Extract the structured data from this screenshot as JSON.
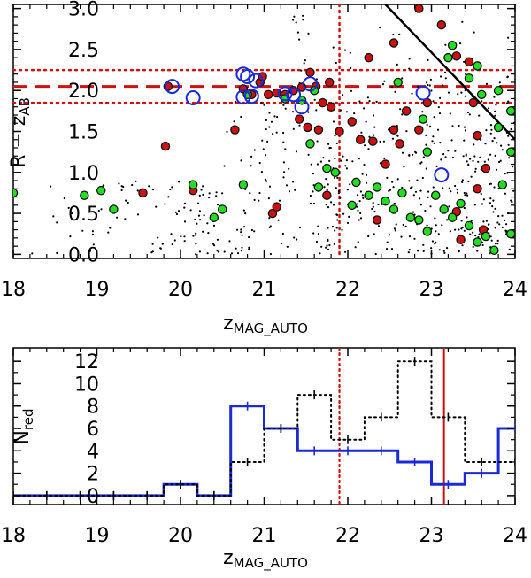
{
  "chart_data": [
    {
      "type": "scatter",
      "panel": "top",
      "xlabel_main": "z",
      "xlabel_sub": "MAG_AUTO",
      "ylabel_main": "R − z",
      "ylabel_sub": "AB",
      "xlim": [
        18,
        24
      ],
      "ylim": [
        -0.05,
        3.05
      ],
      "xticks": [
        "18",
        "19",
        "20",
        "21",
        "22",
        "23",
        "24"
      ],
      "yticks": [
        "0.0",
        "0.5",
        "1.0",
        "1.5",
        "2.0",
        "2.5",
        "3.0"
      ],
      "ref_lines": {
        "red_sequence_dashed": 2.05,
        "red_sequence_dotted": [
          1.85,
          2.25
        ],
        "mag_limit_dotted_x": 21.9,
        "diagonal_cut": [
          [
            22.45,
            3.05
          ],
          [
            24.0,
            1.4
          ]
        ]
      },
      "colors": {
        "red": "#cc1111",
        "green": "#22dd22",
        "blue": "#1a2bd6",
        "black": "#000000"
      },
      "series": [
        {
          "name": "red",
          "marker": "filled circle, dark edge",
          "points": [
            [
              19.85,
              2.05
            ],
            [
              19.82,
              1.32
            ],
            [
              19.55,
              0.75
            ],
            [
              20.15,
              0.78
            ],
            [
              20.65,
              1.52
            ],
            [
              20.75,
              2.02
            ],
            [
              20.85,
              1.95
            ],
            [
              20.95,
              2.1
            ],
            [
              20.98,
              2.17
            ],
            [
              21.05,
              1.95
            ],
            [
              21.15,
              1.97
            ],
            [
              21.25,
              1.95
            ],
            [
              21.35,
              2.0
            ],
            [
              21.45,
              2.04
            ],
            [
              21.55,
              2.22
            ],
            [
              21.62,
              2.05
            ],
            [
              21.7,
              1.85
            ],
            [
              21.78,
              2.1
            ],
            [
              21.42,
              1.65
            ],
            [
              21.52,
              1.55
            ],
            [
              21.65,
              1.52
            ],
            [
              21.8,
              1.8
            ],
            [
              21.9,
              1.5
            ],
            [
              22.05,
              1.62
            ],
            [
              22.15,
              1.4
            ],
            [
              22.25,
              2.4
            ],
            [
              22.55,
              2.58
            ],
            [
              22.3,
              1.38
            ],
            [
              22.45,
              1.1
            ],
            [
              22.55,
              1.52
            ],
            [
              22.62,
              1.35
            ],
            [
              22.7,
              1.75
            ],
            [
              22.85,
              1.52
            ],
            [
              22.95,
              1.85
            ],
            [
              22.85,
              3.0
            ],
            [
              23.12,
              2.8
            ],
            [
              23.3,
              2.42
            ],
            [
              23.45,
              2.35
            ],
            [
              23.55,
              1.45
            ],
            [
              23.5,
              1.85
            ],
            [
              23.65,
              1.05
            ],
            [
              23.55,
              0.8
            ],
            [
              23.62,
              0.3
            ],
            [
              23.3,
              0.52
            ],
            [
              23.35,
              0.18
            ],
            [
              21.1,
              0.5
            ],
            [
              21.15,
              0.58
            ],
            [
              21.75,
              0.72
            ],
            [
              22.35,
              0.42
            ]
          ]
        },
        {
          "name": "green",
          "marker": "filled circle, dark edge",
          "points": [
            [
              18.0,
              0.75
            ],
            [
              18.85,
              0.72
            ],
            [
              19.05,
              0.78
            ],
            [
              19.2,
              0.55
            ],
            [
              20.15,
              0.85
            ],
            [
              20.4,
              0.45
            ],
            [
              20.5,
              0.55
            ],
            [
              20.75,
              0.85
            ],
            [
              20.8,
              1.95
            ],
            [
              21.25,
              1.9
            ],
            [
              21.45,
              1.88
            ],
            [
              21.6,
              2.0
            ],
            [
              21.55,
              1.35
            ],
            [
              21.75,
              1.05
            ],
            [
              21.85,
              1.0
            ],
            [
              21.65,
              0.82
            ],
            [
              22.05,
              0.6
            ],
            [
              22.1,
              0.88
            ],
            [
              22.25,
              0.72
            ],
            [
              22.35,
              0.82
            ],
            [
              22.45,
              0.65
            ],
            [
              22.55,
              0.55
            ],
            [
              22.65,
              0.75
            ],
            [
              22.75,
              0.45
            ],
            [
              22.85,
              0.42
            ],
            [
              22.95,
              0.28
            ],
            [
              23.05,
              0.72
            ],
            [
              23.15,
              0.55
            ],
            [
              23.25,
              0.45
            ],
            [
              23.35,
              0.62
            ],
            [
              23.45,
              0.35
            ],
            [
              23.55,
              0.15
            ],
            [
              23.65,
              0.22
            ],
            [
              23.75,
              0.05
            ],
            [
              23.95,
              0.25
            ],
            [
              23.25,
              2.55
            ],
            [
              23.45,
              2.15
            ],
            [
              23.6,
              1.95
            ],
            [
              23.8,
              2.0
            ],
            [
              23.95,
              1.75
            ],
            [
              23.55,
              2.3
            ],
            [
              23.8,
              1.55
            ],
            [
              22.9,
              1.65
            ],
            [
              22.95,
              1.25
            ],
            [
              22.6,
              2.1
            ],
            [
              23.2,
              2.4
            ],
            [
              23.95,
              1.25
            ],
            [
              23.85,
              0.85
            ]
          ]
        },
        {
          "name": "blue",
          "marker": "open circle",
          "points": [
            [
              19.9,
              2.05
            ],
            [
              20.15,
              1.91
            ],
            [
              20.75,
              2.2
            ],
            [
              20.8,
              2.17
            ],
            [
              20.75,
              1.92
            ],
            [
              20.85,
              1.93
            ],
            [
              20.9,
              2.12
            ],
            [
              21.25,
              1.96
            ],
            [
              21.35,
              1.95
            ],
            [
              21.45,
              1.8
            ],
            [
              21.55,
              2.08
            ],
            [
              22.9,
              1.97
            ],
            [
              23.12,
              0.97
            ]
          ]
        }
      ]
    },
    {
      "type": "histogram",
      "panel": "bottom",
      "xlabel_main": "z",
      "xlabel_sub": "MAG_AUTO",
      "ylabel_main": "N",
      "ylabel_sub": "red",
      "xlim": [
        18,
        24
      ],
      "ylim": [
        -0.8,
        13.2
      ],
      "xticks": [
        "18",
        "19",
        "20",
        "21",
        "22",
        "23",
        "24"
      ],
      "yticks": [
        "0",
        "2",
        "4",
        "6",
        "8",
        "10",
        "12"
      ],
      "bin_edges": [
        17.8,
        18.2,
        18.6,
        19.0,
        19.4,
        19.8,
        20.2,
        20.6,
        21.0,
        21.4,
        21.8,
        22.2,
        22.6,
        23.0,
        23.4,
        23.8,
        24.2
      ],
      "ref_lines": {
        "dotted_red_x": 21.9,
        "solid_red_x": 23.15
      },
      "series": [
        {
          "name": "blue",
          "style": "solid step with error ticks",
          "color": "#1a2bd6",
          "values": [
            0,
            0,
            0,
            0,
            0,
            1,
            0,
            8,
            6,
            4,
            4,
            4,
            3,
            1,
            2,
            6,
            0
          ]
        },
        {
          "name": "black",
          "style": "dotted step with error ticks",
          "color": "#000000",
          "values": [
            0,
            0,
            0,
            0,
            0,
            1,
            0,
            3,
            6,
            9,
            5,
            7,
            12,
            7,
            3,
            3,
            0
          ]
        }
      ]
    }
  ]
}
